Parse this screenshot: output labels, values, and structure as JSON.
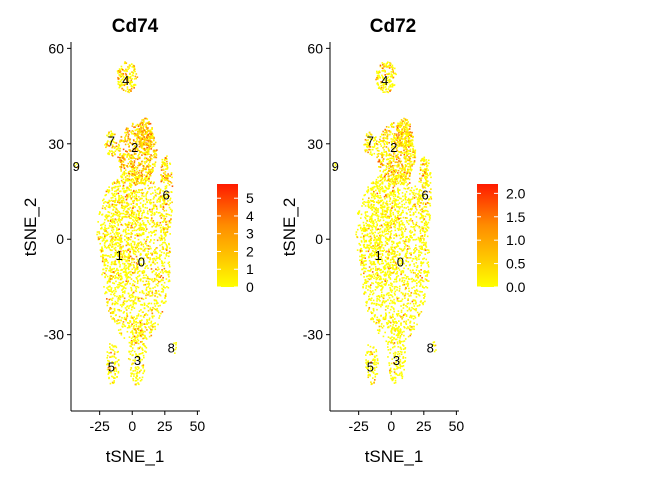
{
  "chart_data": [
    {
      "type": "scatter",
      "title": "Cd74",
      "xlabel": "tSNE_1",
      "ylabel": "tSNE_2",
      "xlim": [
        -47,
        52
      ],
      "ylim": [
        -54,
        62
      ],
      "xticks": [
        -25,
        0,
        25,
        50
      ],
      "yticks": [
        -30,
        0,
        30,
        60
      ],
      "xtick_labels": [
        "-25",
        "0",
        "25",
        "50"
      ],
      "ytick_labels": [
        "-30",
        "0",
        "30",
        "60"
      ],
      "grid": false,
      "legend": {
        "placement": "right",
        "range": [
          0,
          5.8
        ],
        "ticks": [
          0,
          1,
          2,
          3,
          4,
          5
        ],
        "tick_labels": [
          "0",
          "1",
          "2",
          "3",
          "4",
          "5"
        ],
        "colors": [
          "#FFFF00",
          "#FFC400",
          "#FF8C00",
          "#FF4500",
          "#FF0000"
        ]
      },
      "clusters": [
        {
          "label": "0",
          "x": 7,
          "y": -7
        },
        {
          "label": "1",
          "x": -10,
          "y": -5
        },
        {
          "label": "2",
          "x": 2,
          "y": 29
        },
        {
          "label": "3",
          "x": 4,
          "y": -38
        },
        {
          "label": "4",
          "x": -5,
          "y": 50
        },
        {
          "label": "5",
          "x": -16,
          "y": -40
        },
        {
          "label": "6",
          "x": 26,
          "y": 14
        },
        {
          "label": "7",
          "x": -16,
          "y": 31
        },
        {
          "label": "8",
          "x": 30,
          "y": -34
        },
        {
          "label": "9",
          "x": -43,
          "y": 23
        }
      ]
    },
    {
      "type": "scatter",
      "title": "Cd72",
      "xlabel": "tSNE_1",
      "ylabel": "tSNE_2",
      "xlim": [
        -47,
        52
      ],
      "ylim": [
        -54,
        62
      ],
      "xticks": [
        -25,
        0,
        25,
        50
      ],
      "yticks": [
        -30,
        0,
        30,
        60
      ],
      "xtick_labels": [
        "-25",
        "0",
        "25",
        "50"
      ],
      "ytick_labels": [
        "-30",
        "0",
        "30",
        "60"
      ],
      "grid": false,
      "legend": {
        "placement": "right",
        "range": [
          0,
          2.2
        ],
        "ticks": [
          0,
          0.5,
          1,
          1.5,
          2
        ],
        "tick_labels": [
          "0.0",
          "0.5",
          "1.0",
          "1.5",
          "2.0"
        ],
        "colors": [
          "#FFFF00",
          "#FFC400",
          "#FF8C00",
          "#FF4500",
          "#FF0000"
        ]
      },
      "clusters": [
        {
          "label": "0",
          "x": 7,
          "y": -7
        },
        {
          "label": "1",
          "x": -10,
          "y": -5
        },
        {
          "label": "2",
          "x": 2,
          "y": 29
        },
        {
          "label": "3",
          "x": 4,
          "y": -38
        },
        {
          "label": "4",
          "x": -5,
          "y": 50
        },
        {
          "label": "5",
          "x": -16,
          "y": -40
        },
        {
          "label": "6",
          "x": 26,
          "y": 14
        },
        {
          "label": "7",
          "x": -16,
          "y": 31
        },
        {
          "label": "8",
          "x": 30,
          "y": -34
        },
        {
          "label": "9",
          "x": -43,
          "y": 23
        }
      ]
    }
  ]
}
